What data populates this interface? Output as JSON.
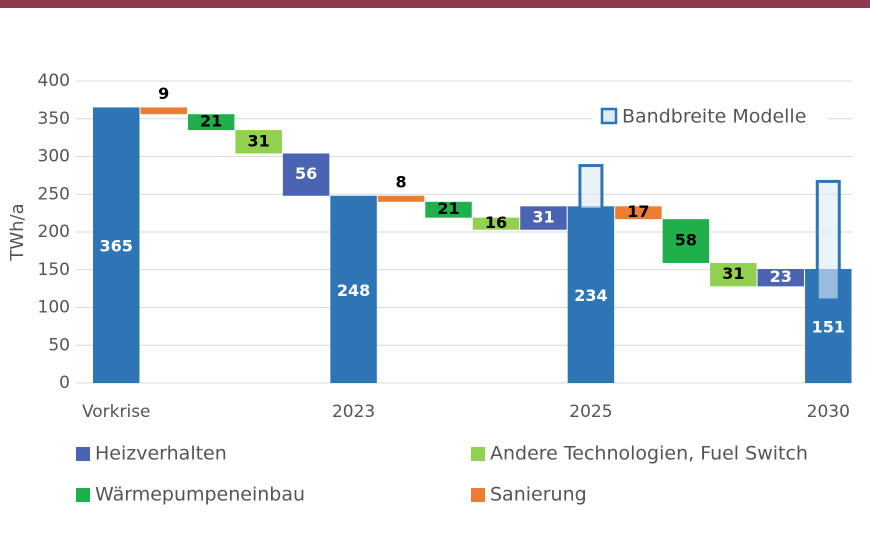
{
  "chart_data": {
    "type": "waterfall",
    "y_label": "TWh/a",
    "categories": [
      "Vorkrise",
      null,
      null,
      null,
      null,
      "2023",
      null,
      null,
      null,
      null,
      "2025",
      null,
      null,
      null,
      null,
      "2030"
    ],
    "values": [
      365,
      9,
      21,
      31,
      56,
      248,
      8,
      21,
      16,
      31,
      234,
      17,
      58,
      31,
      23,
      151
    ],
    "steps": [
      "total",
      "down",
      "down",
      "down",
      "down",
      "total",
      "down",
      "down",
      "down",
      "up",
      "total",
      "down",
      "down",
      "down",
      "up",
      "total"
    ],
    "series_index": [
      null,
      3,
      2,
      1,
      0,
      null,
      3,
      2,
      1,
      0,
      null,
      3,
      2,
      1,
      0,
      null
    ],
    "series": [
      {
        "name": "Heizverhalten",
        "color": "#4a63b3"
      },
      {
        "name": "Andere Technologien, Fuel Switch",
        "color": "#92d050"
      },
      {
        "name": "Wärmepumpeneinbau",
        "color": "#1fb04b"
      },
      {
        "name": "Sanierung",
        "color": "#ed7d31"
      }
    ],
    "total_color": "#2e75b6",
    "band": {
      "name": "Bandbreite Modelle",
      "color": "#2e75b6",
      "low": [
        null,
        null,
        null,
        null,
        null,
        null,
        null,
        null,
        null,
        null,
        230,
        null,
        null,
        null,
        null,
        110
      ],
      "high": [
        null,
        null,
        null,
        null,
        null,
        null,
        null,
        null,
        null,
        null,
        288,
        null,
        null,
        null,
        null,
        267
      ]
    },
    "ylim": [
      0,
      400
    ],
    "yticks": [
      0,
      50,
      100,
      150,
      200,
      250,
      300,
      350,
      400
    ],
    "grid": true
  }
}
